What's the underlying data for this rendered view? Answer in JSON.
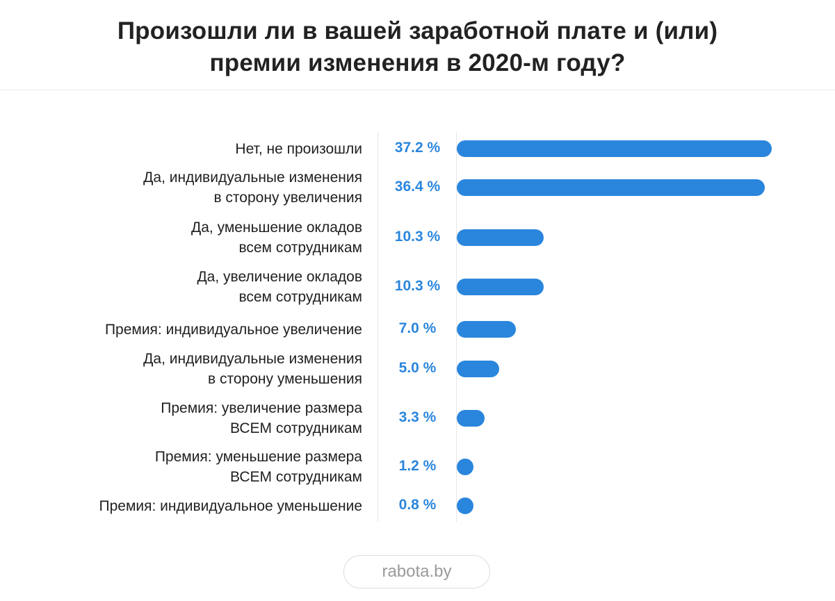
{
  "title": {
    "line1": "Произошли ли в вашей заработной плате и (или)",
    "line2": "премии изменения в 2020-м году?"
  },
  "colors": {
    "bar": "#2a86dd",
    "value_text": "#2a86dd",
    "label_text": "#1f1f1f"
  },
  "chart_data": {
    "type": "bar",
    "orientation": "horizontal",
    "categories": [
      "Нет, не произошли",
      "Да, индивидуальные изменения в сторону увеличения",
      "Да, уменьшение окладов всем сотрудникам",
      "Да, увеличение окладов всем сотрудникам",
      "Премия: индивидуальное увеличение",
      "Да, индивидуальные изменения в сторону уменьшения",
      "Премия: увеличение размера ВСЕМ сотрудникам",
      "Премия: уменьшение размера ВСЕМ сотрудникам",
      "Премия: индивидуальное уменьшение"
    ],
    "values": [
      37.2,
      36.4,
      10.3,
      10.3,
      7.0,
      5.0,
      3.3,
      1.2,
      0.8
    ],
    "unit": "%",
    "rows": [
      {
        "label_lines": [
          "Нет, не произошли"
        ],
        "value": 37.2,
        "value_label": "37.2 %"
      },
      {
        "label_lines": [
          "Да, индивидуальные изменения",
          "в сторону увеличения"
        ],
        "value": 36.4,
        "value_label": "36.4 %"
      },
      {
        "label_lines": [
          "Да, уменьшение окладов",
          "всем сотрудникам"
        ],
        "value": 10.3,
        "value_label": "10.3 %"
      },
      {
        "label_lines": [
          "Да, увеличение окладов",
          "всем сотрудникам"
        ],
        "value": 10.3,
        "value_label": "10.3 %"
      },
      {
        "label_lines": [
          "Премия: индивидуальное увеличение"
        ],
        "value": 7.0,
        "value_label": "7.0 %"
      },
      {
        "label_lines": [
          "Да, индивидуальные изменения",
          "в сторону уменьшения"
        ],
        "value": 5.0,
        "value_label": "5.0 %"
      },
      {
        "label_lines": [
          "Премия: увеличение размера",
          "ВСЕМ сотрудникам"
        ],
        "value": 3.3,
        "value_label": "3.3 %"
      },
      {
        "label_lines": [
          "Премия: уменьшение размера",
          "ВСЕМ сотрудникам"
        ],
        "value": 1.2,
        "value_label": "1.2 %"
      },
      {
        "label_lines": [
          "Премия: индивидуальное уменьшение"
        ],
        "value": 0.8,
        "value_label": "0.8 %"
      }
    ],
    "xlim": [
      0,
      37.2
    ],
    "grid": false,
    "legend": "none"
  },
  "source": "rabota.by"
}
